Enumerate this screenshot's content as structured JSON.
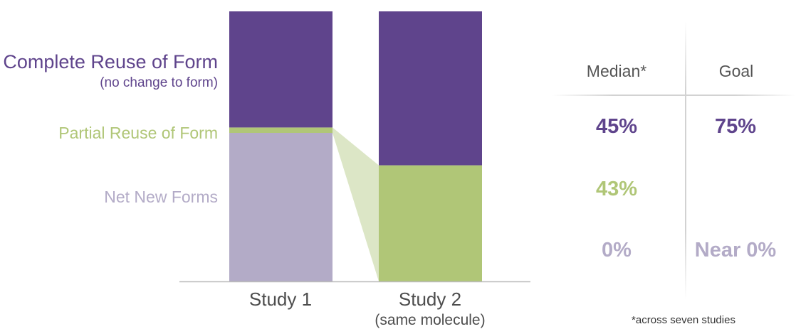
{
  "colors": {
    "complete": "#5f448c",
    "partial": "#b0c677",
    "new": "#b3abc7",
    "connector": "#dce6c6",
    "axis": "#bbbbbb"
  },
  "legend": {
    "complete": "Complete Reuse of Form",
    "complete_sub": "(no change to form)",
    "partial": "Partial Reuse of Form",
    "new": "Net New Forms"
  },
  "chart_data": {
    "type": "bar",
    "stacked": true,
    "categories": [
      "Study 1",
      "Study 2"
    ],
    "category_subtitles": [
      "",
      "(same molecule)"
    ],
    "series": [
      {
        "name": "Net New Forms",
        "values": [
          55,
          0
        ]
      },
      {
        "name": "Partial Reuse of Form",
        "values": [
          2,
          43
        ]
      },
      {
        "name": "Complete Reuse of Form",
        "values": [
          43,
          57
        ]
      }
    ],
    "ylim": [
      0,
      100
    ],
    "legend_position": "left"
  },
  "table": {
    "headers": {
      "median": "Median*",
      "goal": "Goal"
    },
    "median": {
      "complete": "45%",
      "partial": "43%",
      "new": "0%"
    },
    "goal": {
      "complete": "75%",
      "new": "Near 0%"
    },
    "footnote": "*across seven studies"
  }
}
